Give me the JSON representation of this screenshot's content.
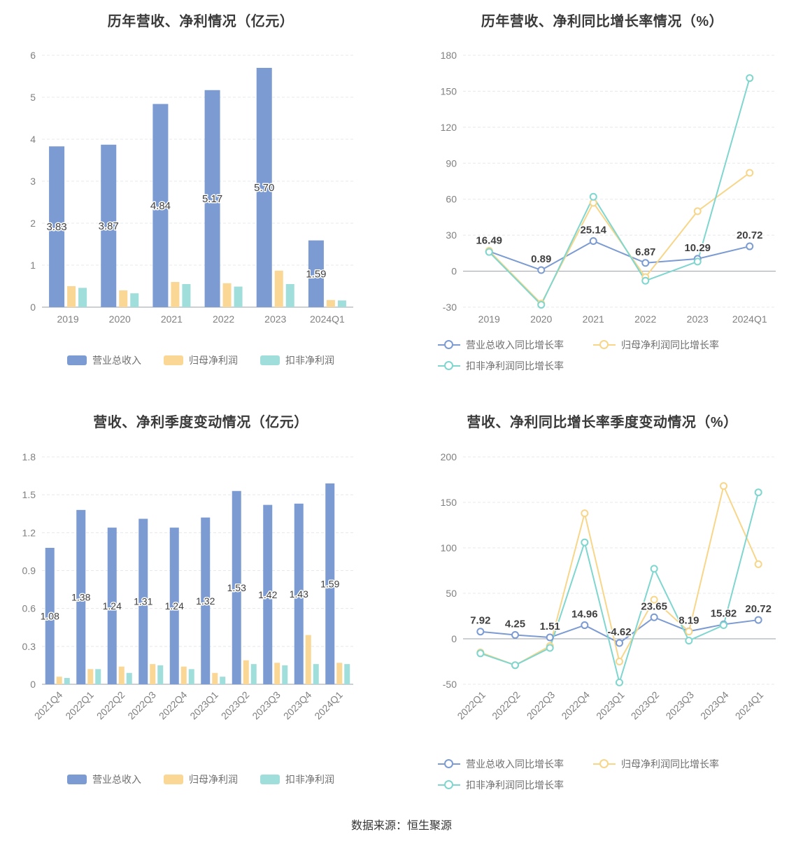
{
  "footer": {
    "source": "数据来源：恒生聚源"
  },
  "chart_data": [
    {
      "id": "annual-revenue-profit",
      "type": "bar",
      "title": "历年营收、净利情况（亿元）",
      "categories": [
        "2019",
        "2020",
        "2021",
        "2022",
        "2023",
        "2024Q1"
      ],
      "ylim": [
        0,
        6
      ],
      "yticks": [
        0,
        1,
        2,
        3,
        4,
        5,
        6
      ],
      "rotate_labels": false,
      "grid": true,
      "legend_position": "bottom",
      "series": [
        {
          "name": "营业总收入",
          "color": "#7b9bd2",
          "values": [
            3.83,
            3.87,
            4.84,
            5.17,
            5.7,
            1.59
          ],
          "labels": [
            "3.83",
            "3.87",
            "4.84",
            "5.17",
            "5.70",
            "1.59"
          ]
        },
        {
          "name": "归母净利润",
          "color": "#fad795",
          "values": [
            0.5,
            0.4,
            0.6,
            0.57,
            0.87,
            0.17
          ]
        },
        {
          "name": "扣非净利润",
          "color": "#a0dedb",
          "values": [
            0.46,
            0.33,
            0.55,
            0.49,
            0.55,
            0.16
          ]
        }
      ]
    },
    {
      "id": "annual-growth-rate",
      "type": "line",
      "title": "历年营收、净利同比增长率情况（%）",
      "categories": [
        "2019",
        "2020",
        "2021",
        "2022",
        "2023",
        "2024Q1"
      ],
      "ylim": [
        -30,
        180
      ],
      "yticks": [
        -30,
        0,
        30,
        60,
        90,
        120,
        150,
        180
      ],
      "rotate_labels": false,
      "grid": true,
      "legend_position": "bottom",
      "series": [
        {
          "name": "营业总收入同比增长率",
          "color": "#7b9bd2",
          "values": [
            16.49,
            0.89,
            25.14,
            6.87,
            10.29,
            20.72
          ],
          "labels": [
            "16.49",
            "0.89",
            "25.14",
            "6.87",
            "10.29",
            "20.72"
          ]
        },
        {
          "name": "归母净利润同比增长率",
          "color": "#f8d689",
          "values": [
            17,
            -27,
            57,
            -5,
            50,
            82
          ]
        },
        {
          "name": "扣非净利润同比增长率",
          "color": "#7fd6cf",
          "values": [
            16,
            -28,
            62,
            -8,
            8,
            161
          ]
        }
      ]
    },
    {
      "id": "quarterly-revenue-profit",
      "type": "bar",
      "title": "营收、净利季度变动情况（亿元）",
      "categories": [
        "2021Q4",
        "2022Q1",
        "2022Q2",
        "2022Q3",
        "2022Q4",
        "2023Q1",
        "2023Q2",
        "2023Q3",
        "2023Q4",
        "2024Q1"
      ],
      "ylim": [
        0,
        1.8
      ],
      "yticks": [
        0,
        0.3,
        0.6,
        0.9,
        1.2,
        1.5,
        1.8
      ],
      "rotate_labels": true,
      "grid": true,
      "legend_position": "bottom",
      "series": [
        {
          "name": "营业总收入",
          "color": "#7b9bd2",
          "values": [
            1.08,
            1.38,
            1.24,
            1.31,
            1.24,
            1.32,
            1.53,
            1.42,
            1.43,
            1.59
          ],
          "labels": [
            "1.08",
            "1.38",
            "1.24",
            "1.31",
            "1.24",
            "1.32",
            "1.53",
            "1.42",
            "1.43",
            "1.59"
          ]
        },
        {
          "name": "归母净利润",
          "color": "#fad795",
          "values": [
            0.06,
            0.12,
            0.14,
            0.16,
            0.14,
            0.09,
            0.19,
            0.17,
            0.39,
            0.17
          ]
        },
        {
          "name": "扣非净利润",
          "color": "#a0dedb",
          "values": [
            0.05,
            0.12,
            0.09,
            0.15,
            0.12,
            0.06,
            0.16,
            0.15,
            0.16,
            0.16
          ]
        }
      ]
    },
    {
      "id": "quarterly-growth-rate",
      "type": "line",
      "title": "营收、净利同比增长率季度变动情况（%）",
      "categories": [
        "2022Q1",
        "2022Q2",
        "2022Q3",
        "2022Q4",
        "2023Q1",
        "2023Q2",
        "2023Q3",
        "2023Q4",
        "2024Q1"
      ],
      "ylim": [
        -50,
        200
      ],
      "yticks": [
        -50,
        0,
        50,
        100,
        150,
        200
      ],
      "rotate_labels": true,
      "grid": true,
      "legend_position": "bottom",
      "series": [
        {
          "name": "营业总收入同比增长率",
          "color": "#7b9bd2",
          "values": [
            7.92,
            4.25,
            1.51,
            14.96,
            -4.62,
            23.65,
            8.19,
            15.82,
            20.72
          ],
          "labels": [
            "7.92",
            "4.25",
            "1.51",
            "14.96",
            "-4.62",
            "23.65",
            "8.19",
            "15.82",
            "20.72"
          ]
        },
        {
          "name": "归母净利润同比增长率",
          "color": "#f8d689",
          "values": [
            -15,
            -29,
            -8,
            138,
            -25,
            43,
            8,
            168,
            82
          ]
        },
        {
          "name": "扣非净利润同比增长率",
          "color": "#7fd6cf",
          "values": [
            -16,
            -29,
            -10,
            106,
            -48,
            77,
            -2,
            15,
            161
          ]
        }
      ]
    }
  ]
}
